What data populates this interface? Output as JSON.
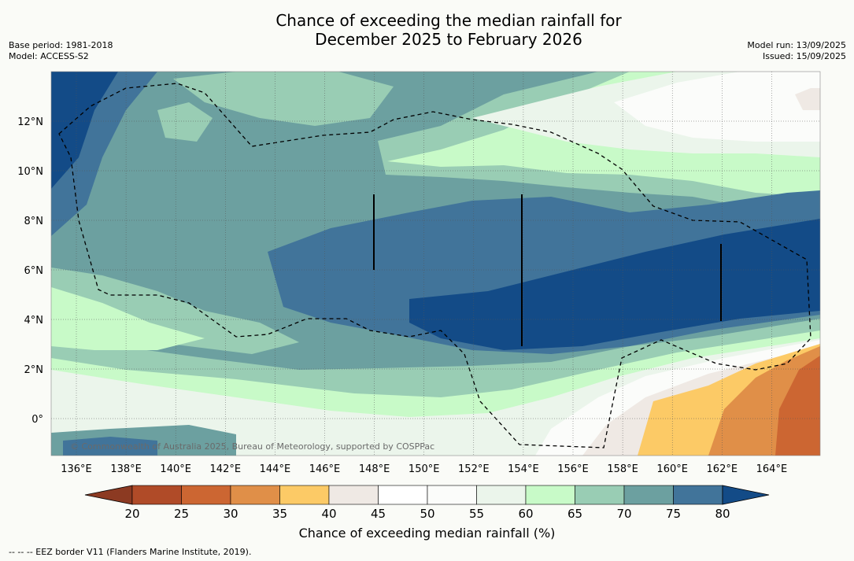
{
  "header": {
    "title": "Chance of exceeding the median rainfall for\nDecember 2025 to February 2026",
    "left_meta": "Base period: 1981-2018\nModel: ACCESS-S2",
    "right_meta": "Model run: 13/09/2025\nIssued: 15/09/2025"
  },
  "map": {
    "lon_labels": [
      "136°E",
      "138°E",
      "140°E",
      "142°E",
      "144°E",
      "146°E",
      "148°E",
      "150°E",
      "152°E",
      "154°E",
      "156°E",
      "158°E",
      "160°E",
      "162°E",
      "164°E"
    ],
    "lat_labels": [
      "12°N",
      "10°N",
      "8°N",
      "6°N",
      "4°N",
      "2°N",
      "0°"
    ],
    "copyright": "© Commonwealth of Australia 2025, Bureau of Meteorology, supported by COSPPac"
  },
  "colorbar": {
    "labels": [
      "20",
      "25",
      "30",
      "35",
      "40",
      "45",
      "50",
      "55",
      "60",
      "65",
      "70",
      "75",
      "80"
    ],
    "colors": [
      "#8c3a22",
      "#b04b28",
      "#cc6632",
      "#e08f48",
      "#fcca66",
      "#efe9e4",
      "#ffffff",
      "#fbfcfa",
      "#ebf5eb",
      "#c8fac8",
      "#99cdb4",
      "#6ca0a0",
      "#41749a",
      "#134b87"
    ],
    "title": "Chance of exceeding median rainfall (%)"
  },
  "footnote": "--  --  -- EEZ border V11 (Flanders Marine Institute, 2019)."
}
